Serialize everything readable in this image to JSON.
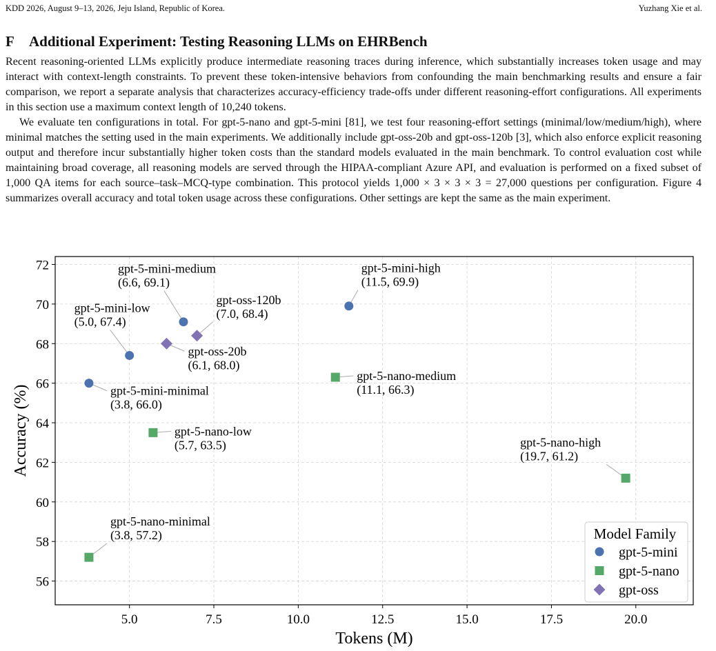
{
  "header": {
    "venue": "KDD 2026, August 9–13, 2026, Jeju Island, Republic of Korea.",
    "authors": "Yuzhang Xie et al."
  },
  "section": {
    "number": "F",
    "title": "Additional Experiment: Testing Reasoning LLMs on EHRBench"
  },
  "paragraphs": [
    "Recent reasoning-oriented LLMs explicitly produce intermediate reasoning traces during inference, which substantially increases token usage and may interact with context-length constraints. To prevent these token-intensive behaviors from confounding the main benchmarking results and ensure a fair comparison, we report a separate analysis that characterizes accuracy-efficiency trade-offs under different reasoning-effort configurations. All experiments in this section use a maximum context length of 10,240 tokens.",
    "We evaluate ten configurations in total. For gpt-5-nano and gpt-5-mini [81], we test four reasoning-effort settings (minimal/low/medium/high), where minimal matches the setting used in the main experiments. We additionally include gpt-oss-20b and gpt-oss-120b [3], which also enforce explicit reasoning output and therefore incur substantially higher token costs than the standard models evaluated in the main benchmark. To control evaluation cost while maintaining broad coverage, all reasoning models are served through the HIPAA-compliant Azure API, and evaluation is performed on a fixed subset of 1,000 QA items for each source–task–MCQ-type combination. This protocol yields 1,000 × 3 × 3 × 3 = 27,000 questions per configuration. Figure 4 summarizes overall accuracy and total token usage across these configurations. Other settings are kept the same as the main experiment."
  ],
  "chart_data": {
    "type": "scatter",
    "xlabel": "Tokens (M)",
    "ylabel": "Accuracy (%)",
    "xlim": [
      2.8,
      21.7
    ],
    "ylim": [
      54.8,
      72.4
    ],
    "xticks": [
      5.0,
      7.5,
      10.0,
      12.5,
      15.0,
      17.5,
      20.0
    ],
    "xtick_labels": [
      "5.0",
      "7.5",
      "10.0",
      "12.5",
      "15.0",
      "17.5",
      "20.0"
    ],
    "yticks": [
      56,
      58,
      60,
      62,
      64,
      66,
      68,
      70,
      72
    ],
    "ytick_labels": [
      "56",
      "58",
      "60",
      "62",
      "64",
      "66",
      "68",
      "70",
      "72"
    ],
    "grid": true,
    "legend_title": "Model Family",
    "legend_position": "bottom-right",
    "series": [
      {
        "name": "gpt-5-mini",
        "marker": "circle",
        "color": "#4c72b0",
        "points": [
          {
            "label": "gpt-5-mini-minimal",
            "coords": "(3.8, 66.0)",
            "x": 3.8,
            "y": 66.0,
            "label_pos": "below-right"
          },
          {
            "label": "gpt-5-mini-low",
            "coords": "(5.0, 67.4)",
            "x": 5.0,
            "y": 67.4,
            "label_pos": "above-left"
          },
          {
            "label": "gpt-5-mini-medium",
            "coords": "(6.6, 69.1)",
            "x": 6.6,
            "y": 69.1,
            "label_pos": "above-left"
          },
          {
            "label": "gpt-5-mini-high",
            "coords": "(11.5, 69.9)",
            "x": 11.5,
            "y": 69.9,
            "label_pos": "above-right"
          }
        ]
      },
      {
        "name": "gpt-5-nano",
        "marker": "square",
        "color": "#55a868",
        "points": [
          {
            "label": "gpt-5-nano-minimal",
            "coords": "(3.8, 57.2)",
            "x": 3.8,
            "y": 57.2,
            "label_pos": "above-right"
          },
          {
            "label": "gpt-5-nano-low",
            "coords": "(5.7, 63.5)",
            "x": 5.7,
            "y": 63.5,
            "label_pos": "right"
          },
          {
            "label": "gpt-5-nano-medium",
            "coords": "(11.1, 66.3)",
            "x": 11.1,
            "y": 66.3,
            "label_pos": "right"
          },
          {
            "label": "gpt-5-nano-high",
            "coords": "(19.7, 61.2)",
            "x": 19.7,
            "y": 61.2,
            "label_pos": "above-left"
          }
        ]
      },
      {
        "name": "gpt-oss",
        "marker": "diamond",
        "color": "#8172b3",
        "points": [
          {
            "label": "gpt-oss-20b",
            "coords": "(6.1, 68.0)",
            "x": 6.1,
            "y": 68.0,
            "label_pos": "below-right"
          },
          {
            "label": "gpt-oss-120b",
            "coords": "(7.0, 68.4)",
            "x": 7.0,
            "y": 68.4,
            "label_pos": "above-right"
          }
        ]
      }
    ]
  }
}
